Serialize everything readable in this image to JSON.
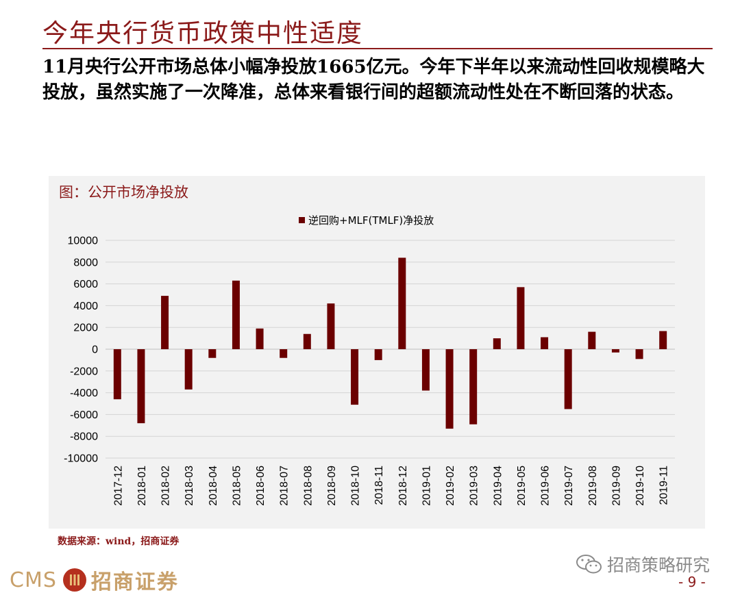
{
  "page": {
    "title": "今年央行货币政策中性适度",
    "summary": "11月央行公开市场总体小幅净投放1665亿元。今年下半年以来流动性回收规模略大投放，虽然实施了一次降准，总体来看银行间的超额流动性处在不断回落的状态。",
    "source": "数据来源：wind，招商证券",
    "wechat": "招商策略研究",
    "page_number": "- 9 -",
    "logo_cms": "CMS",
    "logo_cn": "招商证券"
  },
  "colors": {
    "brand": "#8b1a1a",
    "bar": "#6b0000",
    "panel": "#f2f2f2",
    "logo": "#c8a06a"
  },
  "chart_data": {
    "type": "bar",
    "title": "图：公开市场净投放",
    "legend_position": "top-center",
    "grid": true,
    "ylim": [
      -10000,
      10000
    ],
    "yticks": [
      10000,
      8000,
      6000,
      4000,
      2000,
      0,
      -2000,
      -4000,
      -6000,
      -8000,
      -10000
    ],
    "categories": [
      "2017-12",
      "2018-01",
      "2018-02",
      "2018-03",
      "2018-04",
      "2018-05",
      "2018-06",
      "2018-07",
      "2018-08",
      "2018-09",
      "2018-10",
      "2018-11",
      "2018-12",
      "2019-01",
      "2019-02",
      "2019-03",
      "2019-04",
      "2019-05",
      "2019-06",
      "2019-07",
      "2019-08",
      "2019-09",
      "2019-10",
      "2019-11"
    ],
    "series": [
      {
        "name": "逆回购+MLF(TMLF)净投放",
        "values": [
          -4600,
          -6800,
          4900,
          -3700,
          -800,
          6300,
          1900,
          -800,
          1400,
          4200,
          -5100,
          -1000,
          8400,
          -3800,
          -7300,
          -6900,
          1000,
          5700,
          1100,
          -5500,
          1600,
          -300,
          -900,
          1665
        ]
      }
    ]
  }
}
